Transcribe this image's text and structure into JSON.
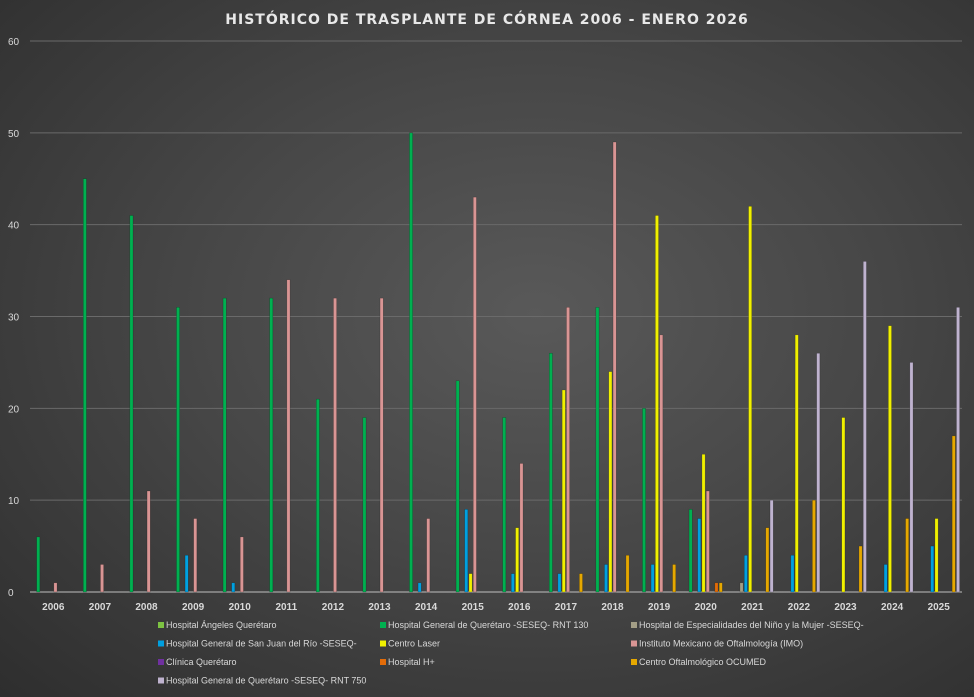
{
  "chart_data": {
    "type": "bar",
    "title": "HISTÓRICO DE TRASPLANTE DE CÓRNEA 2006 - ENERO 2026",
    "xlabel": "",
    "ylabel": "",
    "ylim": [
      0,
      60
    ],
    "yticks": [
      "0",
      "10",
      "20",
      "30",
      "40",
      "50",
      "60"
    ],
    "grid": true,
    "legend_position": "bottom",
    "categories": [
      "2006",
      "2007",
      "2008",
      "2009",
      "2010",
      "2011",
      "2012",
      "2013",
      "2014",
      "2015",
      "2016",
      "2017",
      "2018",
      "2019",
      "2020",
      "2021",
      "2022",
      "2023",
      "2024",
      "2025"
    ],
    "series": [
      {
        "name": "Hospital Ángeles Querétaro",
        "color": "#7dc242",
        "values": [
          0,
          0,
          0,
          0,
          0,
          0,
          0,
          0,
          0,
          0,
          0,
          0,
          0,
          0,
          0,
          0,
          0,
          0,
          0,
          0
        ]
      },
      {
        "name": "Hospital General de Querétaro -SESEQ- RNT 130",
        "color": "#00b050",
        "values": [
          6,
          45,
          41,
          31,
          32,
          32,
          21,
          19,
          50,
          23,
          19,
          26,
          31,
          20,
          9,
          0,
          0,
          0,
          0,
          0
        ]
      },
      {
        "name": "Hospital de Especialidades del Niño y la Mujer -SESEQ-",
        "color": "#a39e86",
        "values": [
          0,
          0,
          0,
          0,
          0,
          0,
          0,
          0,
          0,
          0,
          0,
          0,
          0,
          0,
          0,
          1,
          0,
          0,
          0,
          0
        ]
      },
      {
        "name": "Hospital General de San Juan del Río -SESEQ-",
        "color": "#00a0e0",
        "values": [
          0,
          0,
          0,
          4,
          1,
          0,
          0,
          0,
          1,
          9,
          2,
          2,
          3,
          3,
          8,
          4,
          4,
          0,
          3,
          5
        ]
      },
      {
        "name": "Centro Laser",
        "color": "#f0f000",
        "values": [
          0,
          0,
          0,
          0,
          0,
          0,
          0,
          0,
          0,
          2,
          7,
          22,
          24,
          41,
          15,
          42,
          28,
          19,
          29,
          8
        ]
      },
      {
        "name": "Instituto Mexicano de Oftalmología (IMO)",
        "color": "#d99594",
        "values": [
          1,
          3,
          11,
          8,
          6,
          34,
          32,
          32,
          8,
          43,
          14,
          31,
          49,
          28,
          11,
          0,
          0,
          0,
          0,
          0
        ]
      },
      {
        "name": "Clínica Querétaro",
        "color": "#7030a0",
        "values": [
          0,
          0,
          0,
          0,
          0,
          0,
          0,
          0,
          0,
          0,
          0,
          0,
          0,
          0,
          0,
          0,
          0,
          0,
          0,
          0
        ]
      },
      {
        "name": "Hospital H+",
        "color": "#e36c09",
        "values": [
          0,
          0,
          0,
          0,
          0,
          0,
          0,
          0,
          0,
          0,
          0,
          0,
          0,
          0,
          1,
          0,
          0,
          0,
          0,
          0
        ]
      },
      {
        "name": "Centro Oftalmológico OCUMED",
        "color": "#e6a800",
        "values": [
          0,
          0,
          0,
          0,
          0,
          0,
          0,
          0,
          0,
          0,
          0,
          2,
          4,
          3,
          1,
          7,
          10,
          5,
          8,
          17
        ]
      },
      {
        "name": "Hospital General de Querétaro -SESEQ- RNT 750",
        "color": "#bfb3cf",
        "values": [
          0,
          0,
          0,
          0,
          0,
          0,
          0,
          0,
          0,
          0,
          0,
          0,
          0,
          0,
          0,
          10,
          26,
          36,
          25,
          31
        ]
      }
    ]
  }
}
